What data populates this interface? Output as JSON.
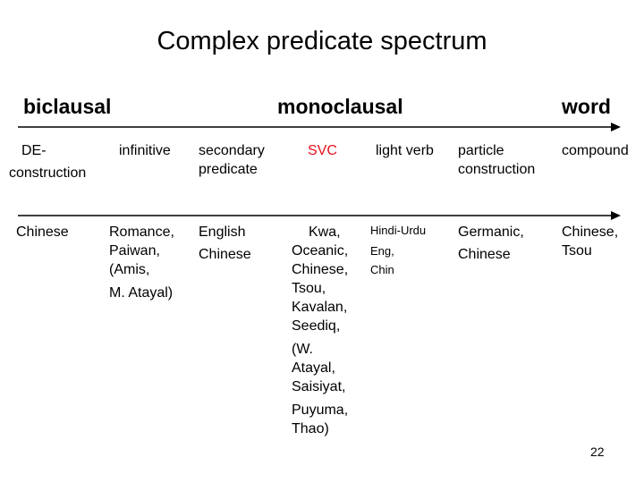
{
  "title": "Complex predicate spectrum",
  "categories": {
    "biclausal": "biclausal",
    "monoclausal": "monoclausal",
    "word": "word"
  },
  "columns": [
    {
      "lines": [
        "DE-",
        "construction"
      ]
    },
    {
      "lines": [
        "infinitive"
      ]
    },
    {
      "lines": [
        "secondary",
        "predicate"
      ]
    },
    {
      "lines": [
        "SVC"
      ]
    },
    {
      "lines": [
        "light verb"
      ]
    },
    {
      "lines": [
        "particle",
        "construction"
      ]
    },
    {
      "lines": [
        "compound"
      ]
    }
  ],
  "languages": [
    {
      "lines": [
        "Chinese"
      ]
    },
    {
      "lines": [
        "Romance,",
        "Paiwan,",
        "(Amis,",
        "M. Atayal)"
      ]
    },
    {
      "lines": [
        "English",
        "Chinese"
      ]
    },
    {
      "lines": [
        "Kwa,",
        "Oceanic,",
        "Chinese,",
        "Tsou,",
        "Kavalan,",
        "Seediq,",
        "(W.",
        "Atayal,",
        "Saisiyat,",
        "Puyuma,",
        "Thao)"
      ]
    },
    {
      "lines": [
        "Hindi-Urdu",
        "Eng,",
        "Chin"
      ]
    },
    {
      "lines": [
        "Germanic,",
        "Chinese"
      ]
    },
    {
      "lines": [
        "Chinese,",
        "Tsou"
      ]
    }
  ],
  "page_number": "22",
  "colors": {
    "svc_accent": "#e8121b",
    "line": "#000000"
  }
}
